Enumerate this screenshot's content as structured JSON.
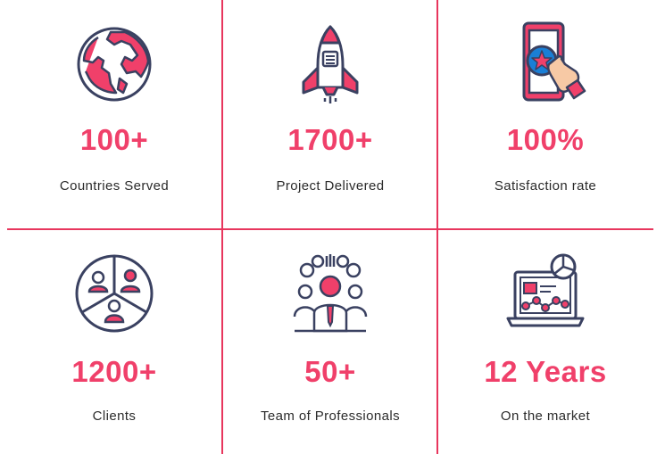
{
  "stats": [
    {
      "value": "100+",
      "label": "Countries Served",
      "icon": "globe-icon"
    },
    {
      "value": "1700+",
      "label": "Project Delivered",
      "icon": "rocket-icon"
    },
    {
      "value": "100%",
      "label": "Satisfaction rate",
      "icon": "smartphone-rating-icon"
    },
    {
      "value": "1200+",
      "label": "Clients",
      "icon": "clients-icon"
    },
    {
      "value": "50+",
      "label": "Team of Professionals",
      "icon": "team-icon"
    },
    {
      "value": "12 Years",
      "label": "On the market",
      "icon": "analytics-laptop-icon"
    }
  ],
  "colors": {
    "accent": "#f0406a",
    "line": "#e8365d",
    "icon_stroke": "#3a4161",
    "text": "#2b2b2b"
  }
}
